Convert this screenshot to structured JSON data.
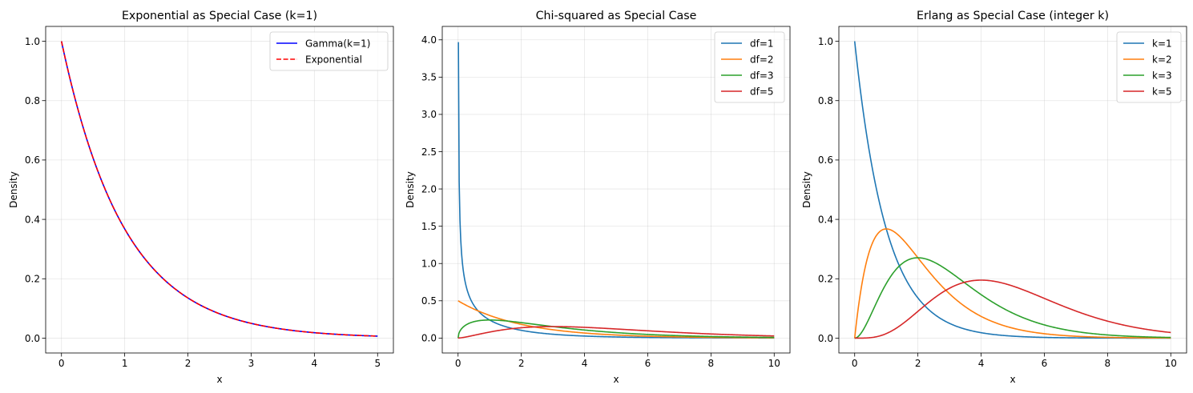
{
  "colors": {
    "blue": "#1f77b4",
    "orange": "#ff7f0e",
    "green": "#2ca02c",
    "red": "#d62728",
    "pure_blue": "#0000ff",
    "pure_red": "#ff0000",
    "grid": "#b0b0b0",
    "axis": "#000000"
  },
  "chart_data": [
    {
      "type": "line",
      "title": "Exponential as Special Case (k=1)",
      "xlabel": "x",
      "ylabel": "Density",
      "xlim": [
        -0.25,
        5.25
      ],
      "ylim": [
        -0.05,
        1.05
      ],
      "xticks": [
        0,
        1,
        2,
        3,
        4,
        5
      ],
      "yticks": [
        0.0,
        0.2,
        0.4,
        0.6,
        0.8,
        1.0
      ],
      "grid": true,
      "legend_position": "top-right",
      "series": [
        {
          "name": "Gamma(k=1)",
          "function": "gamma",
          "params": {
            "k": 1,
            "theta": 1
          },
          "x_range": [
            0,
            5
          ],
          "color": "#0000ff",
          "dash": "solid"
        },
        {
          "name": "Exponential",
          "function": "exponential",
          "params": {
            "rate": 1
          },
          "x_range": [
            0,
            5
          ],
          "color": "#ff0000",
          "dash": "dashed"
        }
      ]
    },
    {
      "type": "line",
      "title": "Chi-squared as Special Case",
      "xlabel": "x",
      "ylabel": "Density",
      "xlim": [
        -0.5,
        10.5
      ],
      "ylim": [
        -0.2,
        4.18
      ],
      "xticks": [
        0,
        2,
        4,
        6,
        8,
        10
      ],
      "yticks": [
        0.0,
        0.5,
        1.0,
        1.5,
        2.0,
        2.5,
        3.0,
        3.5,
        4.0
      ],
      "grid": true,
      "legend_position": "top-right",
      "series": [
        {
          "name": "df=1",
          "function": "chi2",
          "params": {
            "df": 1
          },
          "x_range": [
            0.01,
            10
          ],
          "color": "#1f77b4",
          "dash": "solid"
        },
        {
          "name": "df=2",
          "function": "chi2",
          "params": {
            "df": 2
          },
          "x_range": [
            0,
            10
          ],
          "color": "#ff7f0e",
          "dash": "solid"
        },
        {
          "name": "df=3",
          "function": "chi2",
          "params": {
            "df": 3
          },
          "x_range": [
            0,
            10
          ],
          "color": "#2ca02c",
          "dash": "solid"
        },
        {
          "name": "df=5",
          "function": "chi2",
          "params": {
            "df": 5
          },
          "x_range": [
            0,
            10
          ],
          "color": "#d62728",
          "dash": "solid"
        }
      ]
    },
    {
      "type": "line",
      "title": "Erlang as Special Case (integer k)",
      "xlabel": "x",
      "ylabel": "Density",
      "xlim": [
        -0.5,
        10.5
      ],
      "ylim": [
        -0.05,
        1.05
      ],
      "xticks": [
        0,
        2,
        4,
        6,
        8,
        10
      ],
      "yticks": [
        0.0,
        0.2,
        0.4,
        0.6,
        0.8,
        1.0
      ],
      "grid": true,
      "legend_position": "top-right",
      "series": [
        {
          "name": "k=1",
          "function": "gamma",
          "params": {
            "k": 1,
            "theta": 1
          },
          "x_range": [
            0,
            10
          ],
          "color": "#1f77b4",
          "dash": "solid"
        },
        {
          "name": "k=2",
          "function": "gamma",
          "params": {
            "k": 2,
            "theta": 1
          },
          "x_range": [
            0,
            10
          ],
          "color": "#ff7f0e",
          "dash": "solid"
        },
        {
          "name": "k=3",
          "function": "gamma",
          "params": {
            "k": 3,
            "theta": 1
          },
          "x_range": [
            0,
            10
          ],
          "color": "#2ca02c",
          "dash": "solid"
        },
        {
          "name": "k=5",
          "function": "gamma",
          "params": {
            "k": 5,
            "theta": 1
          },
          "x_range": [
            0,
            10
          ],
          "color": "#d62728",
          "dash": "solid"
        }
      ]
    }
  ]
}
